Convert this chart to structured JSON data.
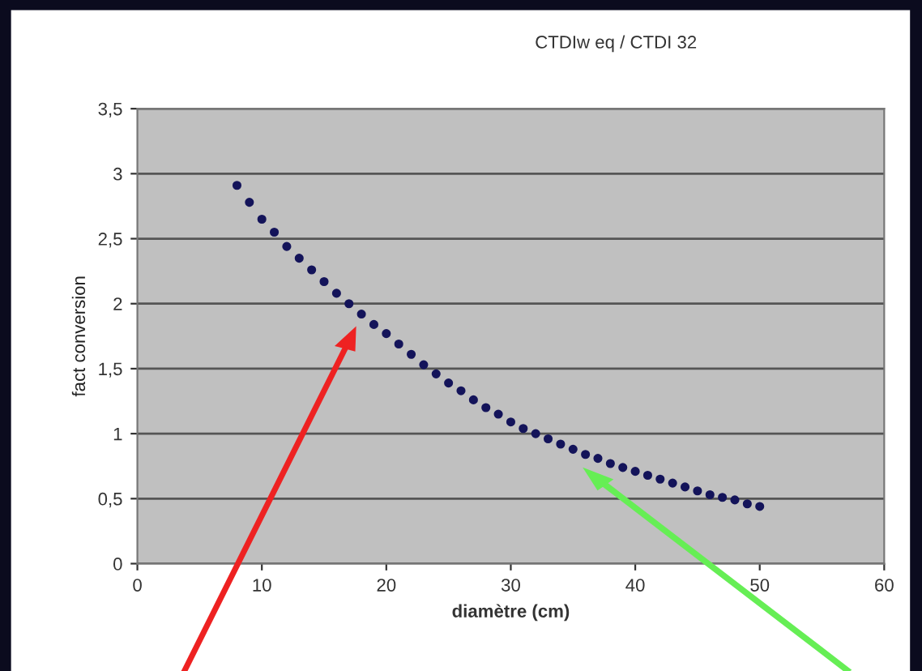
{
  "chart_data": {
    "type": "scatter",
    "title": "CTDIw eq / CTDI 32",
    "xlabel": "diamètre (cm)",
    "ylabel": "fact conversion",
    "x": [
      8,
      9,
      10,
      11,
      12,
      13,
      14,
      15,
      16,
      17,
      18,
      19,
      20,
      21,
      22,
      23,
      24,
      25,
      26,
      27,
      28,
      29,
      30,
      31,
      32,
      33,
      34,
      35,
      36,
      37,
      38,
      39,
      40,
      41,
      42,
      43,
      44,
      45,
      46,
      47,
      48,
      49,
      50
    ],
    "series": [
      {
        "color": "#14145a",
        "values": [
          2.91,
          2.78,
          2.65,
          2.55,
          2.44,
          2.35,
          2.26,
          2.17,
          2.08,
          2.0,
          1.92,
          1.84,
          1.77,
          1.69,
          1.61,
          1.53,
          1.46,
          1.39,
          1.33,
          1.26,
          1.2,
          1.15,
          1.09,
          1.04,
          1.0,
          0.96,
          0.92,
          0.88,
          0.84,
          0.81,
          0.77,
          0.74,
          0.71,
          0.68,
          0.65,
          0.62,
          0.59,
          0.56,
          0.53,
          0.51,
          0.49,
          0.46,
          0.44
        ]
      }
    ],
    "xlim": [
      0,
      60
    ],
    "ylim": [
      0,
      3.5
    ],
    "xticks": [
      0,
      10,
      20,
      30,
      40,
      50,
      60
    ],
    "yticks": [
      0,
      {
        "value": 0.5,
        "label": "0,5"
      },
      1,
      {
        "value": 1.5,
        "label": "1,5"
      },
      2,
      {
        "value": 2.5,
        "label": "2,5"
      },
      3,
      {
        "value": 3.5,
        "label": "3,5"
      }
    ],
    "grid": "y",
    "marker": "circle"
  }
}
